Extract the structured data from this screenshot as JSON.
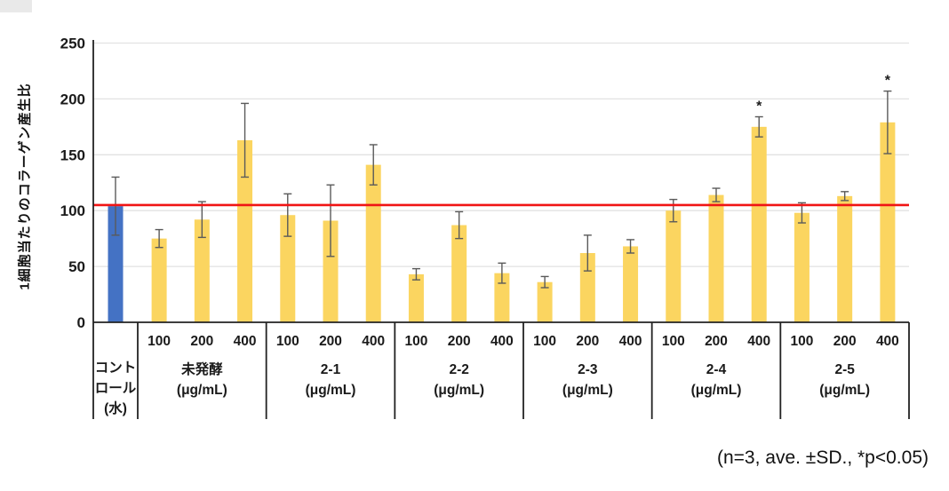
{
  "page": {
    "background": "#ffffff"
  },
  "chart_data": {
    "type": "bar",
    "title": "",
    "ylabel": "1細胞当たりのコラーゲン産生比",
    "xlabel": "",
    "ylim": [
      0,
      250
    ],
    "yticks": [
      0,
      50,
      100,
      150,
      200,
      250
    ],
    "grid": true,
    "legend": "none",
    "annotation": "(n=3, ave. ±SD., *p<0.05)",
    "sig_marker": "*",
    "reference_line": {
      "value": 105,
      "color": "#f01414"
    },
    "bar_colors": {
      "control": "#4472c4",
      "sample": "#fbd560"
    },
    "error_bar_color": "#5a5a5a",
    "axis_color": "#222222",
    "gridline_color": "#e2e2e2",
    "groups": [
      {
        "type": "control",
        "label_lines": [
          "コント",
          "ロール",
          "(水)"
        ],
        "unit": "",
        "bars": [
          {
            "dose": "",
            "value": 104,
            "err": 26,
            "significant": false
          }
        ]
      },
      {
        "type": "sample",
        "label_lines": [
          "未発酵"
        ],
        "unit": "(μg/mL)",
        "bars": [
          {
            "dose": "100",
            "value": 75,
            "err": 8,
            "significant": false
          },
          {
            "dose": "200",
            "value": 92,
            "err": 16,
            "significant": false
          },
          {
            "dose": "400",
            "value": 163,
            "err": 33,
            "significant": false
          }
        ]
      },
      {
        "type": "sample",
        "label_lines": [
          "2-1"
        ],
        "unit": "(μg/mL)",
        "bars": [
          {
            "dose": "100",
            "value": 96,
            "err": 19,
            "significant": false
          },
          {
            "dose": "200",
            "value": 91,
            "err": 32,
            "significant": false
          },
          {
            "dose": "400",
            "value": 141,
            "err": 18,
            "significant": false
          }
        ]
      },
      {
        "type": "sample",
        "label_lines": [
          "2-2"
        ],
        "unit": "(μg/mL)",
        "bars": [
          {
            "dose": "100",
            "value": 43,
            "err": 5,
            "significant": false
          },
          {
            "dose": "200",
            "value": 87,
            "err": 12,
            "significant": false
          },
          {
            "dose": "400",
            "value": 44,
            "err": 9,
            "significant": false
          }
        ]
      },
      {
        "type": "sample",
        "label_lines": [
          "2-3"
        ],
        "unit": "(μg/mL)",
        "bars": [
          {
            "dose": "100",
            "value": 36,
            "err": 5,
            "significant": false
          },
          {
            "dose": "200",
            "value": 62,
            "err": 16,
            "significant": false
          },
          {
            "dose": "400",
            "value": 68,
            "err": 6,
            "significant": false
          }
        ]
      },
      {
        "type": "sample",
        "label_lines": [
          "2-4"
        ],
        "unit": "(μg/mL)",
        "bars": [
          {
            "dose": "100",
            "value": 100,
            "err": 10,
            "significant": false
          },
          {
            "dose": "200",
            "value": 114,
            "err": 6,
            "significant": false
          },
          {
            "dose": "400",
            "value": 175,
            "err": 9,
            "significant": true
          }
        ]
      },
      {
        "type": "sample",
        "label_lines": [
          "2-5"
        ],
        "unit": "(μg/mL)",
        "bars": [
          {
            "dose": "100",
            "value": 98,
            "err": 9,
            "significant": false
          },
          {
            "dose": "200",
            "value": 113,
            "err": 4,
            "significant": false
          },
          {
            "dose": "400",
            "value": 179,
            "err": 28,
            "significant": true
          }
        ]
      }
    ]
  }
}
